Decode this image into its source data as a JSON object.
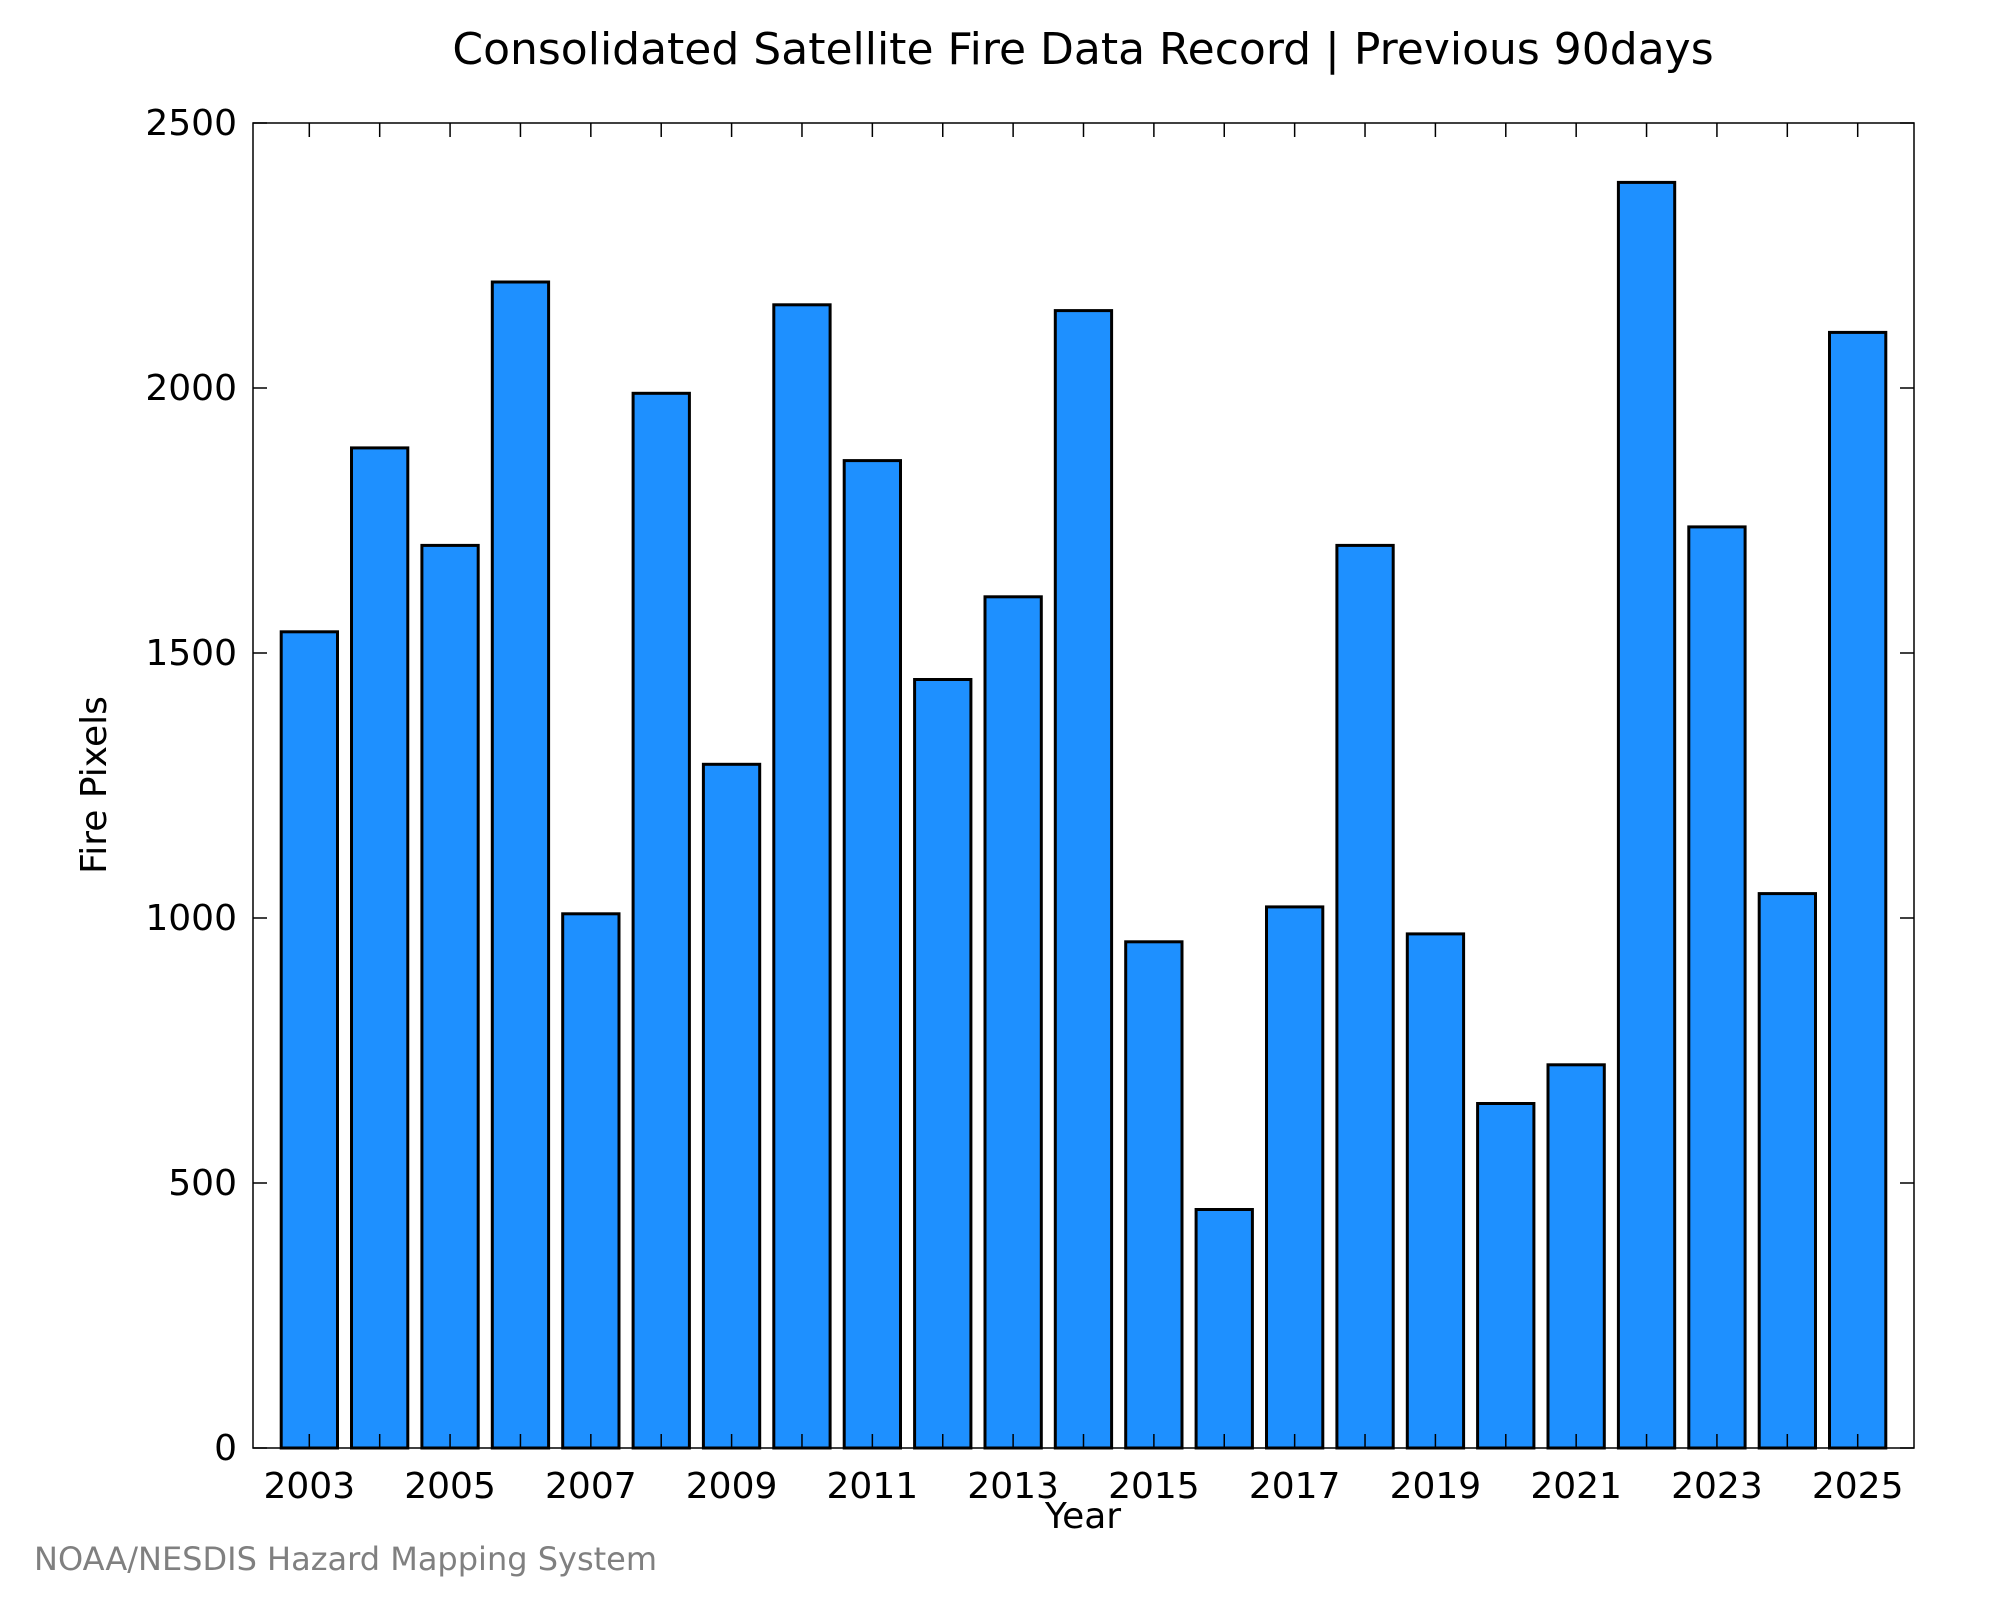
{
  "chart_data": {
    "type": "bar",
    "title": "Consolidated Satellite Fire Data Record | Previous 90days",
    "xlabel": "Year",
    "ylabel": "Fire Pixels",
    "categories": [
      "2003",
      "2004",
      "2005",
      "2006",
      "2007",
      "2008",
      "2009",
      "2010",
      "2011",
      "2012",
      "2013",
      "2014",
      "2015",
      "2016",
      "2017",
      "2018",
      "2019",
      "2020",
      "2021",
      "2022",
      "2023",
      "2024",
      "2025"
    ],
    "x_tick_labels": [
      "2003",
      "2005",
      "2007",
      "2009",
      "2011",
      "2013",
      "2015",
      "2017",
      "2019",
      "2021",
      "2023",
      "2025"
    ],
    "values": [
      1540,
      1887,
      1703,
      2200,
      1008,
      1990,
      1290,
      2157,
      1863,
      1450,
      1606,
      2146,
      955,
      450,
      1021,
      1703,
      970,
      650,
      723,
      2388,
      1738,
      1046,
      2105
    ],
    "ylim": [
      0,
      2500
    ],
    "y_ticks": [
      0,
      500,
      1000,
      1500,
      2000,
      2500
    ],
    "y_tick_labels": [
      "0",
      "500",
      "1000",
      "1500",
      "2000",
      "2500"
    ],
    "grid": false,
    "legend": "none",
    "bar_color": "#1E90FF",
    "bar_edge_color": "#000000"
  },
  "credit": "NOAA/NESDIS Hazard Mapping System"
}
